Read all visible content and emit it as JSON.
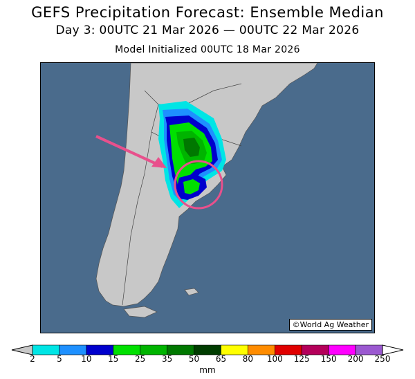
{
  "title": {
    "line1": "GEFS Precipitation Forecast: Ensemble Median",
    "line2": "Day 3: 00UTC 21 Mar 2026 — 00UTC 22 Mar 2026",
    "line3": "Model Initialized 00UTC 18 Mar 2026"
  },
  "map": {
    "region": "Southern South America",
    "credit": "©World Ag Weather",
    "colors": {
      "ocean": "#4a6b8c",
      "land": "#c8c8c8",
      "annotation": "#e8508c"
    }
  },
  "colorbar": {
    "units": "mm",
    "labels": [
      "2",
      "5",
      "10",
      "15",
      "25",
      "35",
      "50",
      "65",
      "80",
      "100",
      "125",
      "150",
      "200",
      "250"
    ],
    "colors": [
      "#00e5e5",
      "#1e90ff",
      "#0000cd",
      "#00e000",
      "#00b400",
      "#007800",
      "#003c00",
      "#ffff00",
      "#ff8c00",
      "#e00000",
      "#b4005a",
      "#ff00ff",
      "#9b59d0"
    ],
    "under_color": "#c8c8c8",
    "over_color": "#ffffff"
  }
}
